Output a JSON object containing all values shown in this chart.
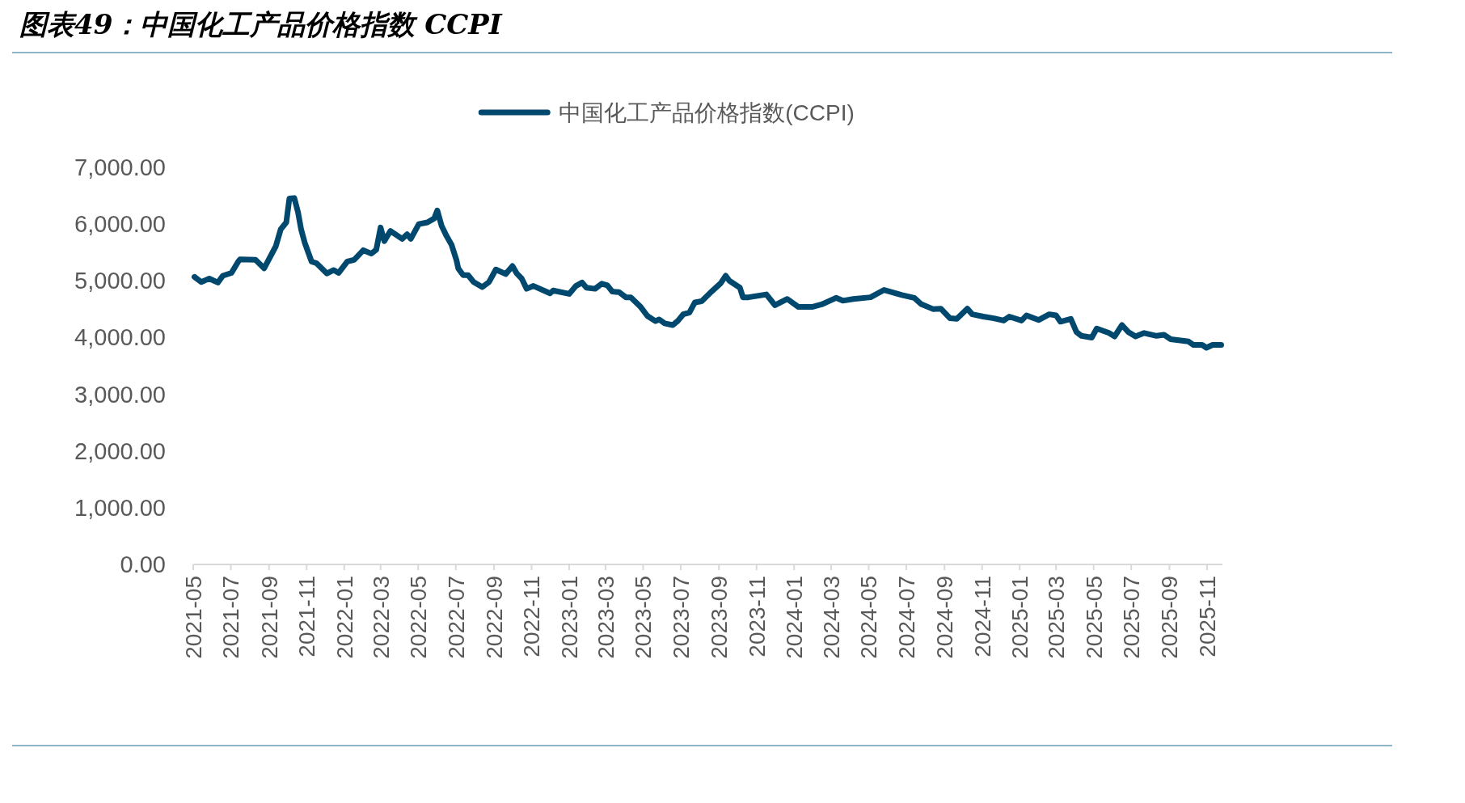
{
  "chart_data": {
    "type": "line",
    "title": "图表49：中国化工产品价格指数 CCPI",
    "x": [
      "2021-05-03",
      "2021-05-14",
      "2021-05-27",
      "2021-06-10",
      "2021-06-18",
      "2021-07-02",
      "2021-07-13",
      "2021-07-16",
      "2021-08-10",
      "2021-08-24",
      "2021-09-12",
      "2021-09-20",
      "2021-09-29",
      "2021-10-04",
      "2021-10-12",
      "2021-10-18",
      "2021-10-23",
      "2021-10-29",
      "2021-11-09",
      "2021-11-17",
      "2021-12-04",
      "2021-12-15",
      "2021-12-23",
      "2022-01-06",
      "2022-01-17",
      "2022-02-01",
      "2022-02-14",
      "2022-02-22",
      "2022-03-01",
      "2022-03-07",
      "2022-03-17",
      "2022-04-05",
      "2022-04-13",
      "2022-04-19",
      "2022-05-02",
      "2022-05-16",
      "2022-05-27",
      "2022-06-01",
      "2022-06-08",
      "2022-06-16",
      "2022-06-24",
      "2022-07-02",
      "2022-07-05",
      "2022-07-13",
      "2022-07-21",
      "2022-07-30",
      "2022-08-13",
      "2022-08-24",
      "2022-09-04",
      "2022-09-20",
      "2022-10-01",
      "2022-10-08",
      "2022-10-16",
      "2022-10-24",
      "2022-11-04",
      "2022-12-01",
      "2022-12-06",
      "2023-01-01",
      "2023-01-12",
      "2023-01-22",
      "2023-01-29",
      "2023-02-12",
      "2023-02-23",
      "2023-03-04",
      "2023-03-12",
      "2023-03-23",
      "2023-04-03",
      "2023-04-11",
      "2023-04-27",
      "2023-05-08",
      "2023-05-21",
      "2023-05-27",
      "2023-06-05",
      "2023-06-18",
      "2023-06-26",
      "2023-07-05",
      "2023-07-15",
      "2023-07-24",
      "2023-08-04",
      "2023-08-20",
      "2023-09-04",
      "2023-09-12",
      "2023-09-18",
      "2023-10-05",
      "2023-10-10",
      "2023-10-19",
      "2023-11-17",
      "2023-12-01",
      "2023-12-21",
      "2024-01-08",
      "2024-01-30",
      "2024-02-16",
      "2024-03-09",
      "2024-03-20",
      "2024-04-06",
      "2024-05-04",
      "2024-05-26",
      "2024-06-24",
      "2024-07-14",
      "2024-07-25",
      "2024-08-14",
      "2024-08-26",
      "2024-09-10",
      "2024-09-21",
      "2024-10-08",
      "2024-10-16",
      "2024-11-03",
      "2024-11-20",
      "2024-12-06",
      "2024-12-15",
      "2025-01-04",
      "2025-01-12",
      "2025-02-01",
      "2025-02-18",
      "2025-03-01",
      "2025-03-08",
      "2025-03-25",
      "2025-04-03",
      "2025-04-11",
      "2025-04-28",
      "2025-05-06",
      "2025-05-26",
      "2025-06-04",
      "2025-06-16",
      "2025-06-26",
      "2025-07-08",
      "2025-07-22",
      "2025-08-11",
      "2025-08-23",
      "2025-09-03",
      "2025-10-02",
      "2025-10-10",
      "2025-10-24",
      "2025-10-31",
      "2025-11-10",
      "2025-11-24"
    ],
    "series": [
      {
        "name": "中国化工产品价格指数(CCPI)",
        "color": "#00486e",
        "values": [
          5070,
          4980,
          5040,
          4970,
          5090,
          5140,
          5340,
          5380,
          5370,
          5220,
          5610,
          5910,
          6030,
          6450,
          6460,
          6210,
          5910,
          5670,
          5340,
          5310,
          5130,
          5190,
          5140,
          5340,
          5370,
          5540,
          5480,
          5550,
          5940,
          5700,
          5880,
          5740,
          5820,
          5740,
          6000,
          6030,
          6100,
          6240,
          5970,
          5790,
          5640,
          5370,
          5220,
          5100,
          5100,
          4980,
          4890,
          4980,
          5200,
          5120,
          5260,
          5130,
          5040,
          4860,
          4910,
          4780,
          4830,
          4770,
          4910,
          4970,
          4880,
          4860,
          4950,
          4920,
          4810,
          4800,
          4710,
          4710,
          4540,
          4380,
          4290,
          4320,
          4250,
          4220,
          4290,
          4410,
          4440,
          4620,
          4640,
          4810,
          4960,
          5090,
          5000,
          4880,
          4710,
          4710,
          4760,
          4570,
          4680,
          4540,
          4540,
          4590,
          4700,
          4650,
          4680,
          4710,
          4840,
          4750,
          4700,
          4590,
          4500,
          4510,
          4340,
          4330,
          4510,
          4410,
          4370,
          4340,
          4300,
          4370,
          4300,
          4390,
          4310,
          4410,
          4390,
          4280,
          4330,
          4100,
          4030,
          4000,
          4160,
          4080,
          4020,
          4220,
          4100,
          4020,
          4080,
          4030,
          4050,
          3970,
          3930,
          3870,
          3870,
          3820,
          3870,
          3870
        ]
      }
    ],
    "xlim": [
      "2021-05-01",
      "2025-11-26"
    ],
    "xticks": [
      "2021-05",
      "2021-07",
      "2021-09",
      "2021-11",
      "2022-01",
      "2022-03",
      "2022-05",
      "2022-07",
      "2022-09",
      "2022-11",
      "2023-01",
      "2023-03",
      "2023-05",
      "2023-07",
      "2023-09",
      "2023-11",
      "2024-01",
      "2024-03",
      "2024-05",
      "2024-07",
      "2024-09",
      "2024-11",
      "2025-01",
      "2025-03",
      "2025-05",
      "2025-07",
      "2025-09",
      "2025-11"
    ],
    "ylim": [
      0,
      7000
    ],
    "yticks": [
      {
        "value": 0,
        "label": "0.00"
      },
      {
        "value": 1000,
        "label": "1,000.00"
      },
      {
        "value": 2000,
        "label": "2,000.00"
      },
      {
        "value": 3000,
        "label": "3,000.00"
      },
      {
        "value": 4000,
        "label": "4,000.00"
      },
      {
        "value": 5000,
        "label": "5,000.00"
      },
      {
        "value": 6000,
        "label": "6,000.00"
      },
      {
        "value": 7000,
        "label": "7,000.00"
      }
    ],
    "legend": "top",
    "line_style": "solid"
  }
}
